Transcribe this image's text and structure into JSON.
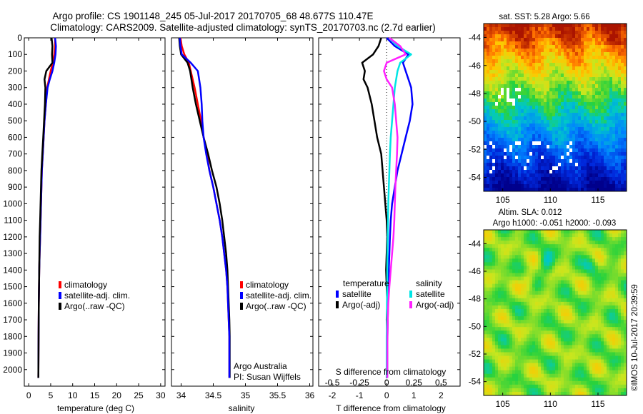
{
  "header": {
    "title_line1": "Argo profile: CS 1901148_245 05-Jul-2017 20170705_68 48.677S 110.47E",
    "title_line2": "Climatology: CARS2009. Satellite-adjusted climatology: synTS_20170703.nc (2.7d earlier)"
  },
  "colors": {
    "climatology": "#ff0000",
    "satellite": "#0000ff",
    "argo": "#000000",
    "salinity_satellite": "#00e5e5",
    "salinity_argo": "#ff20ff"
  },
  "chart_data": [
    {
      "type": "line",
      "panel": "temperature",
      "xlabel": "temperature (deg C)",
      "xlim": [
        -1,
        31
      ],
      "ylim": [
        2100,
        0
      ],
      "y_reversed": true,
      "x_ticks": [
        0,
        5,
        10,
        15,
        20,
        25,
        30
      ],
      "y_ticks": [
        0,
        100,
        200,
        300,
        400,
        500,
        600,
        700,
        800,
        900,
        1000,
        1100,
        1200,
        1300,
        1400,
        1500,
        1600,
        1700,
        1800,
        1900,
        2000
      ],
      "legend_placement": "lower-middle",
      "series": [
        {
          "name": "climatology",
          "color": "#ff0000",
          "x": [
            6.0,
            6.0,
            5.8,
            5.5,
            5.0,
            4.6,
            4.2,
            3.9,
            3.6,
            3.4,
            3.2,
            3.0,
            2.9,
            2.8,
            2.7,
            2.6,
            2.5,
            2.4,
            2.35,
            2.3,
            2.25,
            2.2
          ],
          "y": [
            0,
            50,
            100,
            150,
            200,
            250,
            300,
            400,
            500,
            600,
            700,
            800,
            900,
            1000,
            1100,
            1200,
            1300,
            1400,
            1500,
            1600,
            1800,
            2050
          ]
        },
        {
          "name": "satellite-adj. clim.",
          "color": "#0000ff",
          "x": [
            6.0,
            6.2,
            6.1,
            5.8,
            5.4,
            4.8,
            4.3,
            3.9,
            3.6,
            3.4,
            3.2,
            3.0,
            2.9,
            2.8,
            2.7,
            2.6,
            2.5,
            2.4,
            2.35,
            2.3,
            2.25,
            2.2
          ],
          "y": [
            0,
            50,
            100,
            150,
            200,
            250,
            300,
            400,
            500,
            600,
            700,
            800,
            900,
            1000,
            1100,
            1200,
            1300,
            1400,
            1500,
            1600,
            1800,
            2050
          ]
        },
        {
          "name": "Argo(..raw -QC)",
          "color": "#000000",
          "x": [
            5.2,
            5.4,
            5.3,
            5.4,
            4.0,
            3.6,
            3.8,
            3.7,
            3.5,
            3.3,
            3.1,
            2.9,
            2.8,
            2.7,
            2.6,
            2.5,
            2.45,
            2.4,
            2.35,
            2.3,
            2.25,
            2.2
          ],
          "y": [
            0,
            50,
            100,
            150,
            200,
            250,
            300,
            400,
            500,
            600,
            700,
            800,
            900,
            1000,
            1100,
            1200,
            1300,
            1400,
            1500,
            1600,
            1800,
            2050
          ]
        }
      ]
    },
    {
      "type": "line",
      "panel": "salinity",
      "xlabel": "salinity",
      "xlim": [
        33.85,
        36.05
      ],
      "ylim": [
        2100,
        0
      ],
      "y_reversed": true,
      "x_ticks": [
        34,
        34.5,
        35,
        35.5,
        36
      ],
      "legend_placement": "lower-middle",
      "series": [
        {
          "name": "climatology",
          "color": "#ff0000",
          "x": [
            33.99,
            34.01,
            34.05,
            34.12,
            34.15,
            34.18,
            34.21,
            34.26,
            34.31,
            34.35,
            34.4,
            34.44,
            34.5,
            34.55,
            34.6,
            34.64,
            34.67,
            34.7,
            34.72,
            34.73,
            34.74,
            34.75,
            34.75
          ],
          "y": [
            0,
            50,
            100,
            150,
            200,
            250,
            300,
            400,
            500,
            600,
            700,
            800,
            900,
            1000,
            1100,
            1200,
            1300,
            1400,
            1500,
            1600,
            1700,
            1800,
            2050
          ]
        },
        {
          "name": "satellite-adj. clim.",
          "color": "#0000ff",
          "x": [
            33.98,
            33.99,
            34.01,
            34.15,
            34.26,
            34.28,
            34.3,
            34.32,
            34.33,
            34.35,
            34.39,
            34.44,
            34.5,
            34.55,
            34.6,
            34.64,
            34.67,
            34.7,
            34.72,
            34.73,
            34.74,
            34.75,
            34.75
          ],
          "y": [
            0,
            50,
            100,
            150,
            200,
            250,
            300,
            400,
            500,
            600,
            700,
            800,
            900,
            1000,
            1100,
            1200,
            1300,
            1400,
            1500,
            1600,
            1700,
            1800,
            2050
          ]
        },
        {
          "name": "Argo(..raw -QC)",
          "color": "#000000",
          "x": [
            33.97,
            33.98,
            34.0,
            34.1,
            34.14,
            34.16,
            34.18,
            34.23,
            34.29,
            34.35,
            34.42,
            34.48,
            34.55,
            34.6,
            34.64,
            34.67,
            34.7,
            34.72,
            34.73,
            34.74,
            34.75,
            34.755,
            34.755
          ],
          "y": [
            0,
            50,
            100,
            150,
            200,
            250,
            300,
            400,
            500,
            600,
            700,
            800,
            900,
            1000,
            1100,
            1200,
            1300,
            1400,
            1500,
            1600,
            1700,
            1800,
            2050
          ]
        }
      ]
    },
    {
      "type": "line",
      "panel": "difference",
      "xlabel": "T difference from climatology",
      "xlabel_top": "S difference from climatology",
      "xlim": [
        -2.5,
        2.7
      ],
      "ylim": [
        2100,
        0
      ],
      "y_reversed": true,
      "x_ticks": [
        -2,
        -1,
        0,
        1,
        2
      ],
      "x_ticks_top": [
        "-0.5",
        "-0.25",
        "0",
        "0.25",
        "0.5"
      ],
      "legend_placement": "lower-middle",
      "series": [
        {
          "name": "satellite",
          "group": "temperature",
          "color": "#0000ff",
          "x": [
            0.0,
            0.3,
            0.8,
            0.6,
            0.7,
            0.8,
            0.9,
            0.95,
            0.85,
            0.7,
            0.55,
            0.4,
            0.3,
            0.2,
            0.15,
            0.12,
            0.1,
            0.08,
            0.06,
            0.05,
            0.04,
            0.03,
            0.02
          ],
          "y": [
            0,
            50,
            100,
            150,
            200,
            250,
            300,
            400,
            500,
            600,
            700,
            800,
            900,
            1000,
            1100,
            1200,
            1300,
            1400,
            1500,
            1600,
            1700,
            1800,
            2050
          ]
        },
        {
          "name": "Argo(-adj)",
          "group": "temperature",
          "color": "#000000",
          "x": [
            -0.2,
            -0.3,
            -0.5,
            -0.9,
            -0.8,
            -0.85,
            -0.7,
            -0.55,
            -0.45,
            -0.35,
            -0.2,
            -0.15,
            -0.1,
            -0.05,
            0.0,
            0.02,
            0.0,
            -0.02,
            0.0,
            0.02,
            0.0,
            0.02,
            0.0
          ],
          "y": [
            0,
            50,
            100,
            150,
            200,
            250,
            300,
            400,
            500,
            600,
            700,
            800,
            900,
            1000,
            1100,
            1200,
            1300,
            1400,
            1500,
            1600,
            1700,
            1800,
            2050
          ]
        },
        {
          "name": "satellite",
          "group": "salinity",
          "color": "#00e5e5",
          "x": [
            0.1,
            0.4,
            0.9,
            0.5,
            0.4,
            0.35,
            0.3,
            0.25,
            0.2,
            0.15,
            0.12,
            0.1,
            0.08,
            0.06,
            0.05,
            0.04,
            0.03,
            0.02,
            0.02,
            0.01,
            0.01,
            0.0,
            0.0
          ],
          "y": [
            0,
            50,
            100,
            150,
            200,
            250,
            300,
            400,
            500,
            600,
            700,
            800,
            900,
            1000,
            1100,
            1200,
            1300,
            1400,
            1500,
            1600,
            1700,
            1800,
            2050
          ]
        },
        {
          "name": "Argo(-adj)",
          "group": "salinity",
          "color": "#ff20ff",
          "x": [
            0.1,
            0.5,
            0.7,
            0.0,
            -0.1,
            0.0,
            0.2,
            0.3,
            0.35,
            0.4,
            0.38,
            0.35,
            0.32,
            0.3,
            0.28,
            0.25,
            0.2,
            0.15,
            0.1,
            0.06,
            0.04,
            0.03,
            0.02
          ],
          "y": [
            0,
            50,
            100,
            150,
            200,
            250,
            300,
            400,
            500,
            600,
            700,
            800,
            900,
            1000,
            1100,
            1200,
            1300,
            1400,
            1500,
            1600,
            1700,
            1800,
            2050
          ]
        }
      ]
    },
    {
      "type": "heatmap",
      "panel": "sst-map",
      "title": "sat. SST: 5.28 Argo: 5.66",
      "xlim": [
        103,
        118
      ],
      "ylim": [
        -55,
        -43
      ],
      "x_ticks": [
        105,
        110,
        115
      ],
      "y_ticks": [
        -44,
        -46,
        -48,
        -50,
        -52,
        -54
      ]
    },
    {
      "type": "heatmap",
      "panel": "sla-map",
      "title": "Altim. SLA: 0.012",
      "title_line2": "Argo h1000: -0.051 h2000: -0.093",
      "xlim": [
        103,
        118
      ],
      "ylim": [
        -55,
        -43
      ],
      "x_ticks": [
        105,
        110,
        115
      ],
      "y_ticks": [
        -44,
        -46,
        -48,
        -50,
        -52,
        -54
      ]
    }
  ],
  "legends": {
    "profile": [
      "climatology",
      "satellite-adj. clim.",
      "Argo(..raw -QC)"
    ],
    "difference": {
      "temperature_heading": "temperature",
      "salinity_heading": "salinity",
      "temperature_items": [
        "satellite",
        "Argo(-adj)"
      ],
      "salinity_items": [
        "satellite",
        "Argo(-adj)"
      ]
    }
  },
  "annotations": {
    "provider": "Argo Australia",
    "pi": "PI: Susan Wijffels",
    "credit": "©IMOS 10-Jul-2017 20:39:59"
  }
}
